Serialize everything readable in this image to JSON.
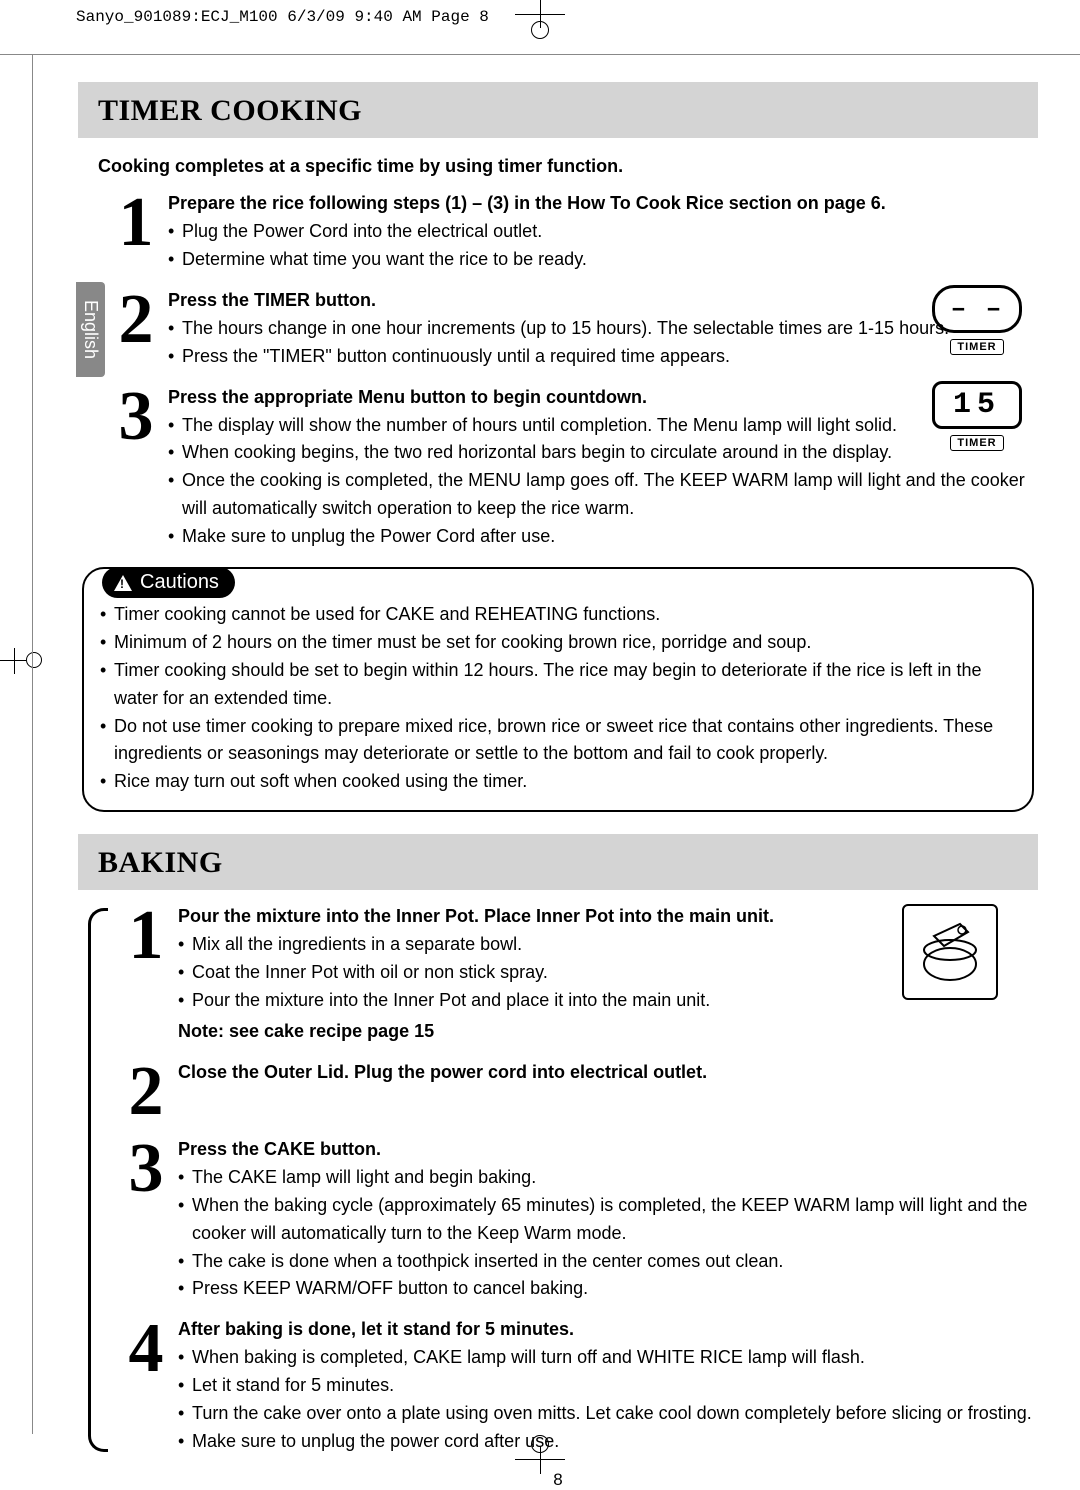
{
  "print_header": "Sanyo_901089:ECJ_M100  6/3/09  9:40 AM  Page 8",
  "lang_tab": "English",
  "page_number": "8",
  "display1": {
    "value": "– –",
    "label": "TIMER"
  },
  "display2": {
    "value": "15",
    "label": "TIMER"
  },
  "timer": {
    "title": "TIMER COOKING",
    "subtitle": "Cooking completes at a specific time by using timer function.",
    "steps": [
      {
        "num": "1",
        "head": "Prepare the rice following steps (1) – (3) in the How To Cook Rice section on page 6.",
        "bullets": [
          "Plug the Power Cord into the electrical outlet.",
          "Determine what time you want the rice to be ready."
        ]
      },
      {
        "num": "2",
        "head": "Press the TIMER button.",
        "bullets": [
          "The hours change in one hour increments (up to 15 hours). The selectable times are 1-15 hours.",
          "Press the \"TIMER\" button continuously until a required time appears."
        ]
      },
      {
        "num": "3",
        "head": "Press the appropriate Menu button to begin countdown.",
        "bullets": [
          "The display will show the number of hours until completion. The Menu lamp will light solid.",
          "When cooking begins, the two red horizontal bars begin to circulate around in the display.",
          "Once the cooking is completed, the MENU lamp goes off. The KEEP WARM lamp will light and the cooker will automatically switch operation to keep the rice warm.",
          "Make sure to unplug the Power Cord after use."
        ]
      }
    ],
    "cautions_label": "Cautions",
    "cautions": [
      "Timer cooking cannot be used for CAKE and REHEATING functions.",
      "Minimum of 2 hours on the timer must be set for cooking brown rice, porridge and soup.",
      "Timer cooking should be set to begin within 12 hours. The rice may begin to deteriorate if the rice is left in the water for an extended time.",
      "Do not use timer cooking to prepare mixed rice, brown rice or sweet rice that contains other ingredients. These ingredients or seasonings may deteriorate or settle to the bottom and fail to cook properly.",
      "Rice may turn out soft when cooked using the timer."
    ]
  },
  "baking": {
    "title": "BAKING",
    "steps": [
      {
        "num": "1",
        "head": "Pour the mixture into the Inner Pot. Place Inner Pot into the main unit.",
        "bullets": [
          "Mix all the ingredients in a separate bowl.",
          "Coat the Inner Pot with oil or non stick spray.",
          "Pour the mixture into the Inner Pot and place it into the main unit."
        ],
        "note": "Note:  see cake recipe page 15"
      },
      {
        "num": "2",
        "head": "Close the Outer Lid. Plug the power cord into electrical outlet.",
        "bullets": []
      },
      {
        "num": "3",
        "head": "Press the CAKE button.",
        "bullets": [
          "The CAKE lamp will light and begin baking.",
          "When the baking cycle (approximately 65 minutes) is completed, the KEEP WARM lamp will light and the cooker will automatically turn to the Keep Warm mode.",
          "The cake is done when a toothpick inserted in the center comes out clean.",
          "Press KEEP WARM/OFF button to cancel baking."
        ]
      },
      {
        "num": "4",
        "head": "After baking is done, let it stand for 5 minutes.",
        "bullets": [
          "When baking is completed, CAKE lamp will turn off and WHITE RICE lamp will flash.",
          "Let it stand for 5 minutes.",
          "Turn the cake over onto a plate using oven mitts.  Let cake cool down completely before slicing or frosting.",
          "Make sure to unplug the power cord after use."
        ]
      }
    ]
  }
}
